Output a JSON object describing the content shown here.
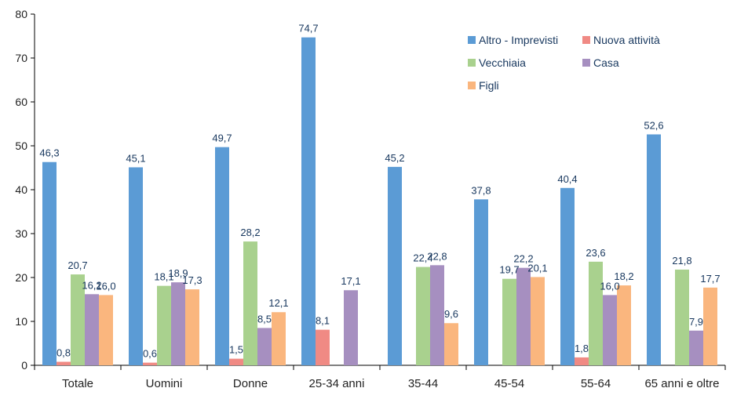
{
  "chart_data": {
    "type": "bar",
    "title": "",
    "xlabel": "",
    "ylabel": "",
    "ylim": [
      0,
      80
    ],
    "yticks": [
      0,
      10,
      20,
      30,
      40,
      50,
      60,
      70,
      80
    ],
    "grid": false,
    "legend_position": "top-right",
    "categories": [
      "Totale",
      "Uomini",
      "Donne",
      "25-34 anni",
      "35-44",
      "45-54",
      "55-64",
      "65 anni e oltre"
    ],
    "series": [
      {
        "name": "Altro - Imprevisti",
        "color": "#5b9bd5",
        "values": [
          46.3,
          45.1,
          49.7,
          74.7,
          45.2,
          37.8,
          40.4,
          52.6
        ],
        "labels": [
          "46,3",
          "45,1",
          "49,7",
          "74,7",
          "45,2",
          "37,8",
          "40,4",
          "52,6"
        ]
      },
      {
        "name": "Nuova attività",
        "color": "#f08a84",
        "values": [
          0.8,
          0.6,
          1.5,
          8.1,
          null,
          null,
          1.8,
          null
        ],
        "labels": [
          "0,8",
          "0,6",
          "1,5",
          "8,1",
          null,
          null,
          "1,8",
          null
        ]
      },
      {
        "name": "Vecchiaia",
        "color": "#a9d18e",
        "values": [
          20.7,
          18.1,
          28.2,
          null,
          22.4,
          19.7,
          23.6,
          21.8
        ],
        "labels": [
          "20,7",
          "18,1",
          "28,2",
          null,
          "22,4",
          "19,7",
          "23,6",
          "21,8"
        ]
      },
      {
        "name": "Casa",
        "color": "#a68fc0",
        "values": [
          16.2,
          18.9,
          8.5,
          17.1,
          22.8,
          22.2,
          16.0,
          7.9
        ],
        "labels": [
          "16,2",
          "18,9",
          "8,5",
          "17,1",
          "22,8",
          "22,2",
          "16,0",
          "7,9"
        ]
      },
      {
        "name": "Figli",
        "color": "#fab67e",
        "values": [
          16.0,
          17.3,
          12.1,
          null,
          9.6,
          20.1,
          18.2,
          17.7
        ],
        "labels": [
          "16,0",
          "17,3",
          "12,1",
          null,
          "9,6",
          "20,1",
          "18,2",
          "17,7"
        ]
      }
    ]
  }
}
